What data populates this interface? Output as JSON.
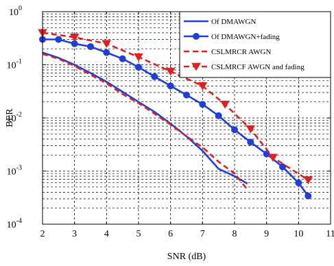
{
  "chart_data": {
    "type": "line",
    "xlabel": "SNR (dB)",
    "ylabel": "BER",
    "xlim": [
      2,
      11
    ],
    "ylim": [
      0.0001,
      1
    ],
    "yscale": "log",
    "grid": true,
    "legend_position": "top-right",
    "x_ticks": [
      "2",
      "3",
      "4",
      "5",
      "6",
      "7",
      "8",
      "9",
      "10",
      "11"
    ],
    "y_ticks": [
      {
        "base": "10",
        "exp": "0"
      },
      {
        "base": "10",
        "exp": "-1"
      },
      {
        "base": "10",
        "exp": "-2"
      },
      {
        "base": "10",
        "exp": "-3"
      },
      {
        "base": "10",
        "exp": "-4"
      }
    ],
    "series": [
      {
        "name": "Of DMAWGN",
        "color": "#1f3fd6",
        "dash": "solid",
        "marker": "none",
        "x": [
          2.0,
          2.5,
          3.0,
          3.5,
          4.0,
          4.5,
          5.0,
          5.5,
          6.0,
          6.5,
          7.0,
          7.5,
          8.0,
          8.4
        ],
        "y": [
          0.17,
          0.135,
          0.1,
          0.07,
          0.048,
          0.031,
          0.02,
          0.013,
          0.0078,
          0.0045,
          0.0024,
          0.0011,
          0.0008,
          0.00058
        ]
      },
      {
        "name": "Of DMAWGN+fading",
        "color": "#1f3fd6",
        "dash": "solid",
        "marker": "circle",
        "x": [
          2.0,
          2.5,
          3.0,
          3.5,
          4.0,
          4.5,
          5.0,
          5.5,
          6.0,
          6.5,
          7.0,
          7.5,
          8.0,
          8.5,
          9.0,
          9.5,
          10.0,
          10.3
        ],
        "y": [
          0.3,
          0.3,
          0.25,
          0.22,
          0.17,
          0.13,
          0.09,
          0.06,
          0.04,
          0.027,
          0.018,
          0.011,
          0.006,
          0.0035,
          0.0021,
          0.0012,
          0.0006,
          0.00034
        ]
      },
      {
        "name": "CSLMRCR AWGN",
        "color": "#e02020",
        "dash": "dashed",
        "marker": "none",
        "x": [
          2.0,
          2.5,
          3.0,
          3.5,
          4.0,
          4.5,
          5.0,
          5.5,
          6.0,
          6.5,
          7.0,
          7.5,
          8.0,
          8.4
        ],
        "y": [
          0.16,
          0.13,
          0.095,
          0.065,
          0.045,
          0.028,
          0.019,
          0.012,
          0.0075,
          0.0045,
          0.0028,
          0.0015,
          0.0009,
          0.00045
        ]
      },
      {
        "name": "CSLMRCF AWGN and fading",
        "color": "#e02020",
        "dash": "dashed",
        "marker": "triangle-down",
        "x": [
          2.0,
          3.0,
          4.0,
          5.0,
          6.0,
          7.0,
          7.7,
          8.5,
          9.2,
          10.3
        ],
        "y": [
          0.4,
          0.33,
          0.25,
          0.14,
          0.075,
          0.04,
          0.018,
          0.0062,
          0.0018,
          0.00068
        ]
      }
    ]
  }
}
